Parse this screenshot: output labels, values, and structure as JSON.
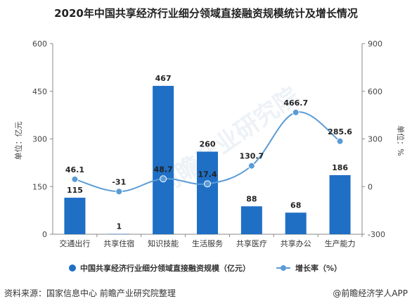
{
  "title": "2020年中国共享经济行业细分领域直接融资规模统计及增长情况",
  "footer": {
    "source": "资料来源：国家信息中心 前瞻产业研究院整理",
    "brand": "@前瞻经济学人APP"
  },
  "watermark": "前瞻产业研究院",
  "chart_data": {
    "type": "bar",
    "categories": [
      "交通出行",
      "共享住宿",
      "知识技能",
      "生活服务",
      "共享医疗",
      "共享办公",
      "生产能力"
    ],
    "series": [
      {
        "name": "中国共享经济行业细分领域直接融资规模（亿元）",
        "type": "bar",
        "axis": "left",
        "values": [
          115,
          1,
          467,
          260,
          88,
          68,
          186
        ],
        "color": "#1f6fc5"
      },
      {
        "name": "增长率（%）",
        "type": "line",
        "axis": "right",
        "values": [
          46.1,
          -31,
          48.7,
          17.4,
          130.7,
          466.7,
          285.6
        ],
        "color": "#5b9bd5"
      }
    ],
    "ylabel": "单位：亿元",
    "y2label": "单位：%",
    "ylim": [
      0,
      600
    ],
    "y2lim": [
      -300,
      900
    ],
    "yticks": [
      "0",
      "150",
      "300",
      "450",
      "600"
    ],
    "y2ticks": [
      "-300",
      "0",
      "300",
      "600",
      "900"
    ],
    "legend_position": "bottom",
    "grid": false
  }
}
